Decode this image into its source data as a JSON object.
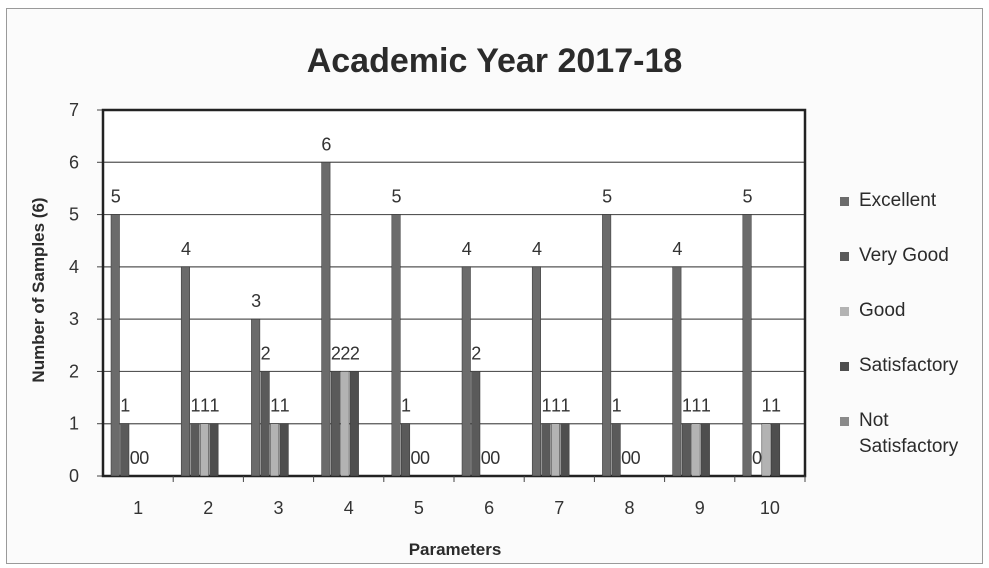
{
  "chart_data": {
    "type": "bar",
    "title": "Academic Year 2017-18",
    "xlabel": "Parameters",
    "ylabel": "Number of Samples (6)",
    "ylim": [
      0,
      7
    ],
    "yticks": [
      "0",
      "1",
      "2",
      "3",
      "4",
      "5",
      "6",
      "7"
    ],
    "categories": [
      "1",
      "2",
      "3",
      "4",
      "5",
      "6",
      "7",
      "8",
      "9",
      "10"
    ],
    "grid": true,
    "legend_position": "right",
    "series": [
      {
        "name": "Excellent",
        "color": "#6b6b6b",
        "values": [
          5,
          4,
          3,
          6,
          5,
          4,
          4,
          5,
          4,
          5
        ],
        "labels": [
          "5",
          "4",
          "3",
          "6",
          "5",
          "4",
          "4",
          "5",
          "4",
          "5"
        ]
      },
      {
        "name": "Very Good",
        "color": "#5a5a5a",
        "values": [
          1,
          1,
          2,
          2,
          1,
          2,
          1,
          1,
          1,
          0
        ],
        "labels": [
          "1",
          "1",
          "2",
          "2",
          "1",
          "2",
          "1",
          "1",
          "1",
          "0"
        ]
      },
      {
        "name": "Good",
        "color": "#b3b3b3",
        "values": [
          0,
          1,
          1,
          2,
          0,
          0,
          1,
          0,
          1,
          1
        ],
        "labels": [
          "0",
          "1",
          "1",
          "2",
          "0",
          "0",
          "1",
          "0",
          "1",
          "1"
        ]
      },
      {
        "name": "Satisfactory",
        "color": "#4e4e4e",
        "values": [
          0,
          1,
          1,
          2,
          0,
          0,
          1,
          0,
          1,
          1
        ],
        "labels": [
          "0",
          "1",
          "1",
          "2",
          "0",
          "0",
          "1",
          "0",
          "1",
          "1"
        ]
      },
      {
        "name": "Not Satisfactory",
        "color": "#8a8a8a",
        "values": [
          0,
          0,
          0,
          0,
          0,
          0,
          0,
          0,
          0,
          0
        ],
        "labels": []
      }
    ]
  }
}
